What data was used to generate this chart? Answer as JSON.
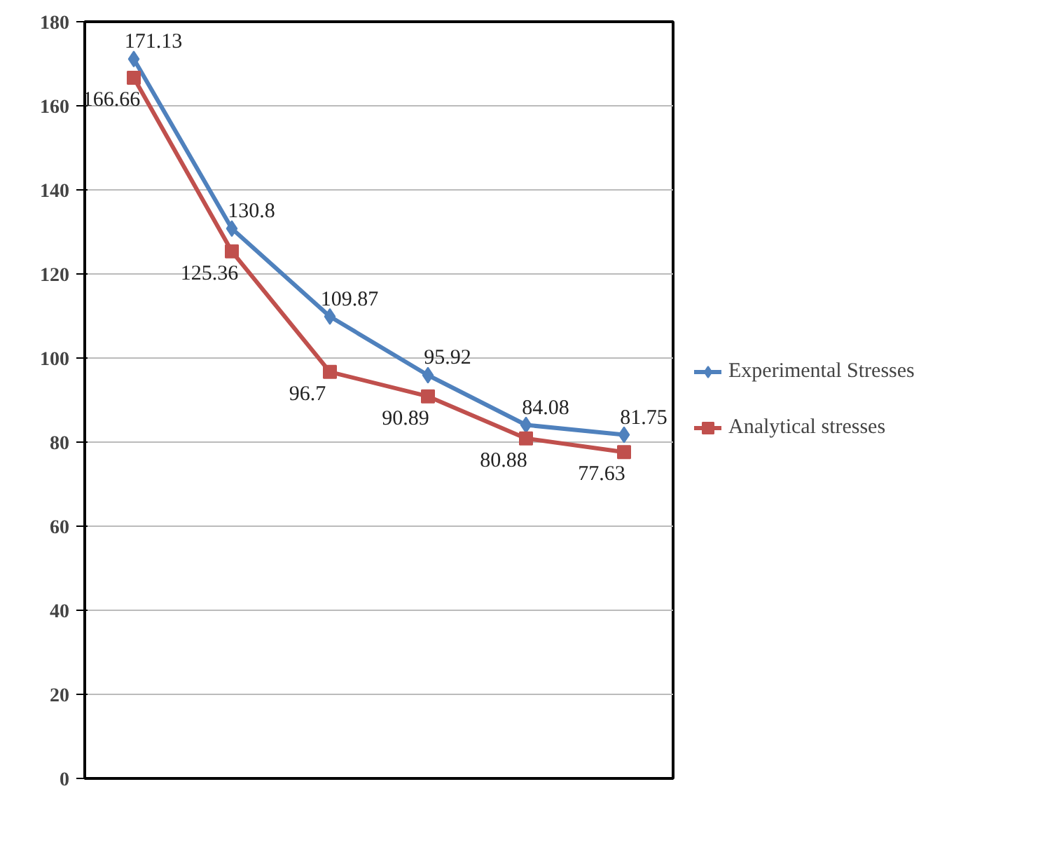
{
  "chart_data": {
    "type": "line",
    "categories": [
      null,
      null,
      null,
      null,
      null,
      null
    ],
    "series": [
      {
        "name": "Experimental Stresses",
        "color": "#4f81bd",
        "marker": "diamond",
        "values": [
          171.13,
          130.8,
          109.87,
          95.92,
          84.08,
          81.75
        ]
      },
      {
        "name": "Analytical stresses",
        "color": "#c0504d",
        "marker": "square",
        "values": [
          166.66,
          125.36,
          96.7,
          90.89,
          80.88,
          77.63
        ]
      }
    ],
    "ylim": [
      0,
      180
    ],
    "yticks": [
      0,
      20,
      40,
      60,
      80,
      100,
      120,
      140,
      160,
      180
    ],
    "grid": "y",
    "legend": "right",
    "data_labels": true,
    "tick_labels": "y",
    "line_style": "solid"
  }
}
